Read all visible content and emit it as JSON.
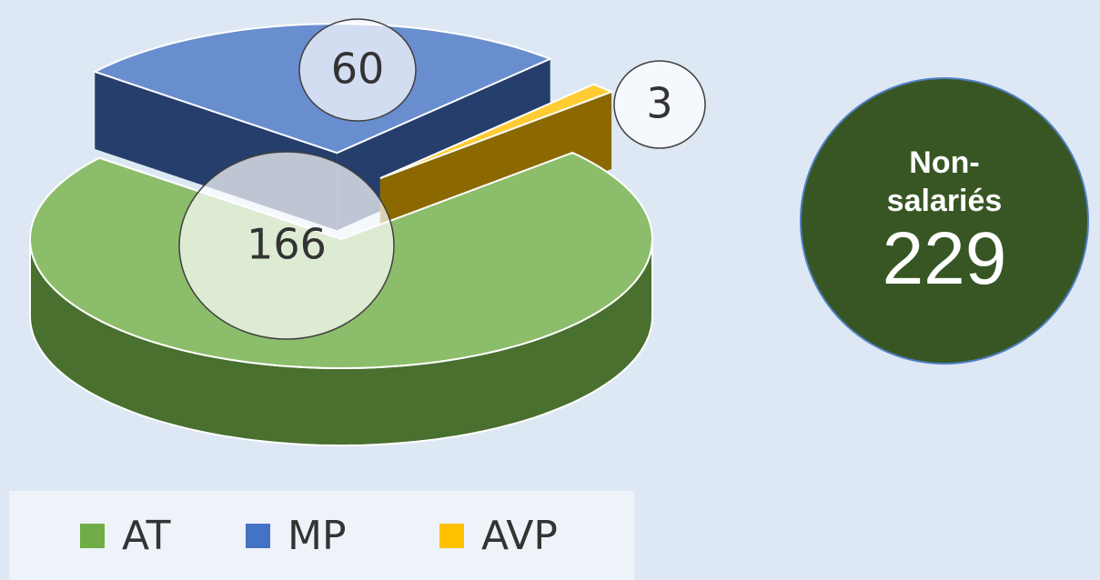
{
  "chart_data": {
    "type": "pie3d",
    "categories": [
      "AT",
      "MP",
      "AVP"
    ],
    "values": [
      166,
      60,
      3
    ],
    "colors": [
      "#70ad47",
      "#4472c4",
      "#ffc000"
    ],
    "legend": "bottom",
    "annotation": {
      "text": "Non-salariés",
      "value": 229
    }
  }
}
